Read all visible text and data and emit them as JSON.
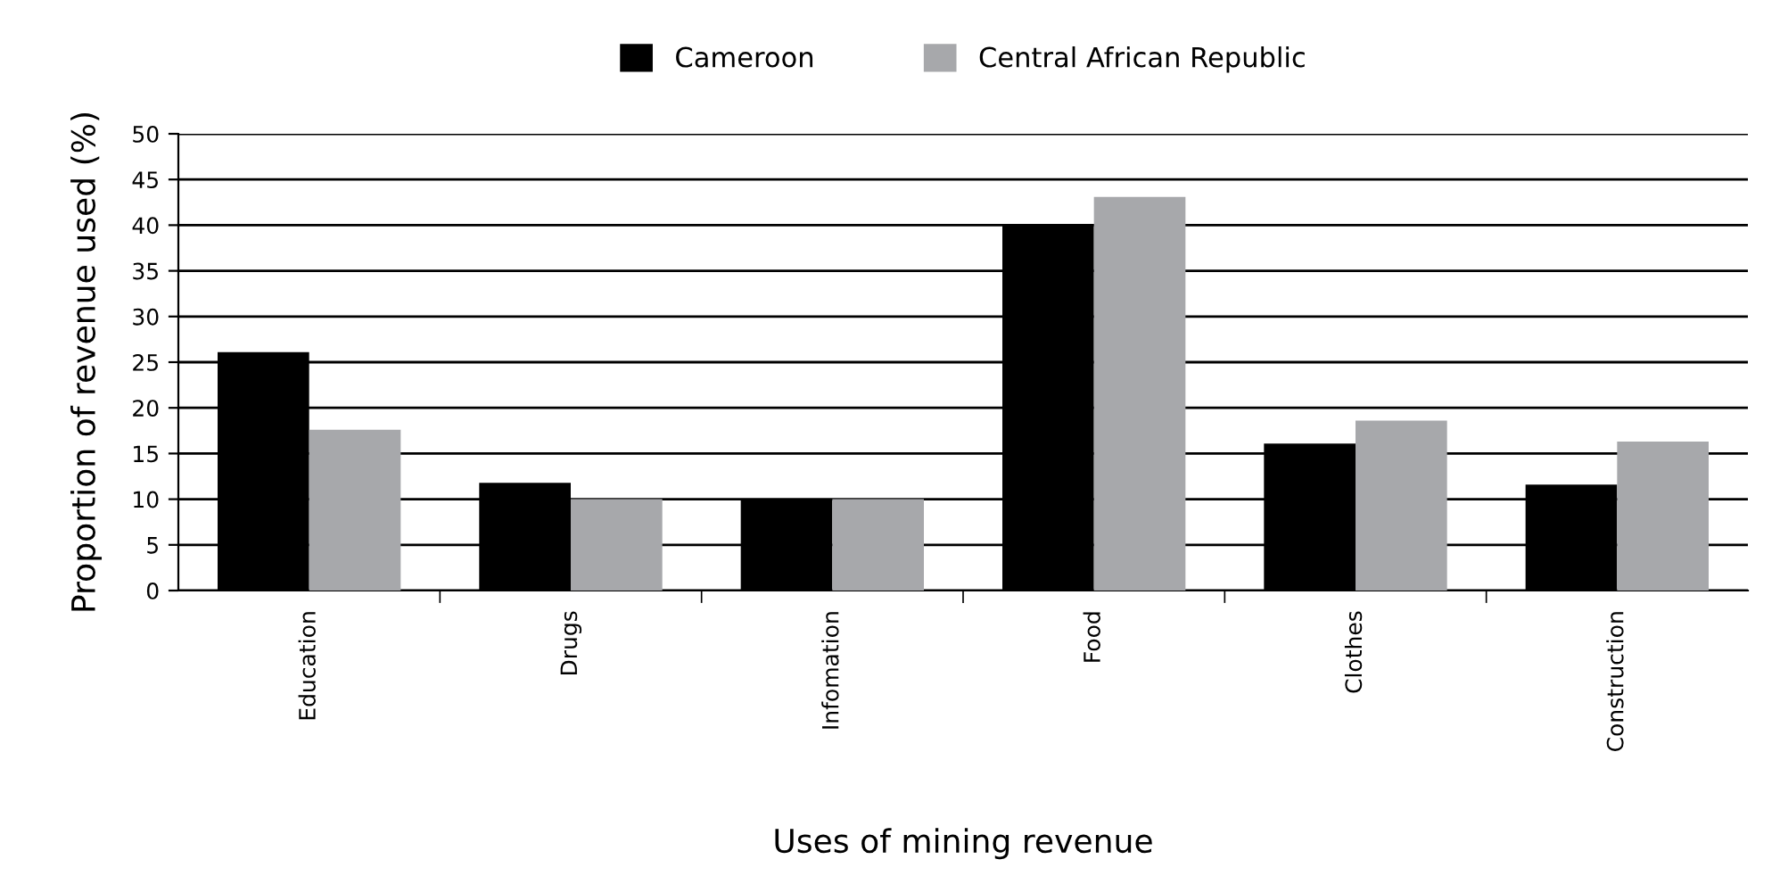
{
  "chart_data": {
    "type": "bar",
    "xlabel": "Uses of mining revenue",
    "ylabel": "Proportion of revenue used (%)",
    "categories": [
      "Education",
      "Drugs",
      "Infomation",
      "Food",
      "Clothes",
      "Construction"
    ],
    "series": [
      {
        "name": "Cameroon",
        "color": "#000000",
        "values": [
          26.1,
          11.8,
          10,
          40,
          16.1,
          11.6
        ]
      },
      {
        "name": "Central African Republic",
        "color": "#a7a8ab",
        "values": [
          17.6,
          10,
          10,
          43.1,
          18.6,
          16.3
        ]
      }
    ],
    "ylim": [
      0,
      50
    ],
    "yticks": [
      0,
      5,
      10,
      15,
      20,
      25,
      30,
      35,
      40,
      45,
      50
    ],
    "grid": "y",
    "legend": "top"
  }
}
